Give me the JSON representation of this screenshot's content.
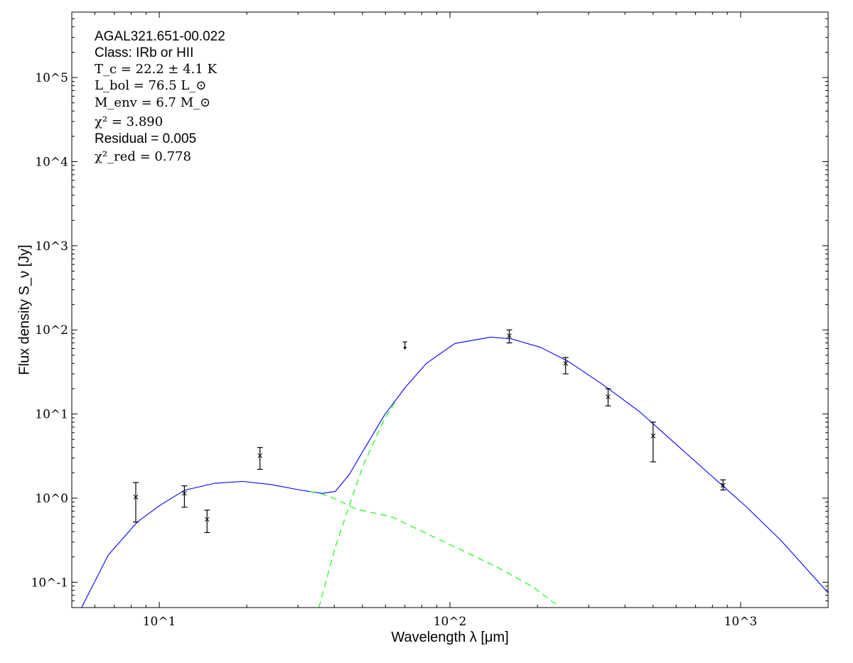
{
  "chart_data": {
    "type": "scatter",
    "title": "",
    "xlabel": "Wavelength λ [μm]",
    "ylabel": "Flux density S_ν [Jy]",
    "xscale": "log",
    "yscale": "log",
    "xlim": [
      5,
      2000
    ],
    "ylim": [
      0.05,
      600000
    ],
    "x_ticks": [
      10,
      100,
      1000
    ],
    "x_tick_labels": [
      "10^1",
      "10^2",
      "10^3"
    ],
    "y_ticks": [
      0.1,
      1,
      10,
      100,
      1000,
      10000,
      100000
    ],
    "y_tick_labels": [
      "10^-1",
      "10^0",
      "10^1",
      "10^2",
      "10^3",
      "10^4",
      "10^5"
    ],
    "grid": false,
    "annotations": {
      "source": "AGAL321.651-00.022",
      "class": "Class: IRb or HII",
      "tc": "T_c = 22.2 ± 4.1 K",
      "lbol": "L_bol = 76.5 L_⊙",
      "menv": "M_env = 6.7 M_⊙",
      "chi2": "χ² = 3.890",
      "residual": "Residual = 0.005",
      "chi2red": "χ²_red = 0.778"
    },
    "measurements": [
      {
        "x": 8.3,
        "y": 1.03,
        "ylo": 0.52,
        "yhi": 1.53
      },
      {
        "x": 12.2,
        "y": 1.14,
        "ylo": 0.78,
        "yhi": 1.4
      },
      {
        "x": 14.6,
        "y": 0.56,
        "ylo": 0.39,
        "yhi": 0.72
      },
      {
        "x": 22.2,
        "y": 3.2,
        "ylo": 2.2,
        "yhi": 4.0
      },
      {
        "x": 160,
        "y": 85,
        "ylo": 70,
        "yhi": 100
      },
      {
        "x": 250,
        "y": 40,
        "ylo": 30,
        "yhi": 47
      },
      {
        "x": 350,
        "y": 16,
        "ylo": 12.5,
        "yhi": 20
      },
      {
        "x": 500,
        "y": 5.5,
        "ylo": 2.7,
        "yhi": 8.0
      },
      {
        "x": 870,
        "y": 1.42,
        "ylo": 1.25,
        "yhi": 1.65
      }
    ],
    "upper_limits": [
      {
        "x": 70,
        "y": 72
      }
    ],
    "series": [
      {
        "style": "solid",
        "color": "#0000ff",
        "x": [
          5.4,
          6.67,
          8.4,
          10,
          12.2,
          15.5,
          19.4,
          24.3,
          30.4,
          36.4,
          40.3,
          45,
          50.4,
          59.6,
          70.4,
          83,
          104,
          138,
          163,
          205,
          256,
          338,
          450,
          594,
          786,
          1042,
          1370,
          2000
        ],
        "y": [
          0.05,
          0.21,
          0.52,
          0.81,
          1.24,
          1.5,
          1.58,
          1.45,
          1.25,
          1.14,
          1.2,
          1.9,
          3.7,
          9.8,
          21,
          40,
          69,
          82,
          78,
          62,
          42,
          22,
          10.6,
          4.5,
          1.9,
          0.8,
          0.32,
          0.075
        ]
      },
      {
        "style": "dashed",
        "color": "#00ff00",
        "x": [
          33,
          36.4,
          40.3,
          47.6,
          63,
          83,
          110,
          146,
          194,
          231
        ],
        "y": [
          1.2,
          1.12,
          0.98,
          0.74,
          0.6,
          0.38,
          0.24,
          0.15,
          0.087,
          0.055
        ]
      },
      {
        "style": "dashed",
        "color": "#00ff00",
        "x": [
          35.4,
          40.3,
          45,
          50.4,
          59.6,
          65
        ],
        "y": [
          0.05,
          0.26,
          0.81,
          2.5,
          8.8,
          14
        ]
      }
    ]
  }
}
